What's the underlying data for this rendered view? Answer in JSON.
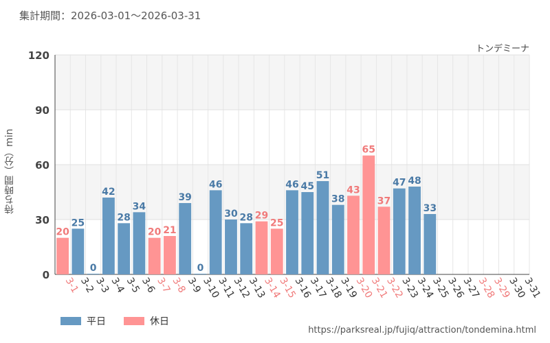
{
  "header": {
    "period": "集計期間：2026-03-01～2026-03-31",
    "attraction_name": "トンデミーナ"
  },
  "legend": {
    "weekday_label": "平日",
    "holiday_label": "休日"
  },
  "footer": {
    "source_url": "https://parksreal.jp/fujiq/attraction/tondemina.html"
  },
  "colors": {
    "weekday": "#6699c2",
    "holiday": "#ff9494",
    "weekday_text": "#4a7aa6",
    "holiday_text": "#f07a7a",
    "band": "#f5f5f5"
  },
  "chart_data": {
    "type": "bar",
    "ylabel": "待ち時間（分）min",
    "ylim": [
      0,
      120
    ],
    "yticks": [
      "0",
      "30",
      "60",
      "90",
      "120"
    ],
    "categories": [
      "3-1",
      "3-2",
      "3-3",
      "3-4",
      "3-5",
      "3-6",
      "3-7",
      "3-8",
      "3-9",
      "3-10",
      "3-11",
      "3-12",
      "3-13",
      "3-14",
      "3-15",
      "3-16",
      "3-17",
      "3-18",
      "3-19",
      "3-20",
      "3-21",
      "3-22",
      "3-23",
      "3-24",
      "3-25",
      "3-26",
      "3-27",
      "3-28",
      "3-29",
      "3-30",
      "3-31"
    ],
    "values": [
      20,
      25,
      0,
      42,
      28,
      34,
      20,
      21,
      39,
      0,
      46,
      30,
      28,
      29,
      25,
      46,
      45,
      51,
      38,
      43,
      65,
      37,
      47,
      48,
      33,
      null,
      null,
      null,
      null,
      null,
      null
    ],
    "day_type": [
      "holiday",
      "weekday",
      "weekday",
      "weekday",
      "weekday",
      "weekday",
      "holiday",
      "holiday",
      "weekday",
      "weekday",
      "weekday",
      "weekday",
      "weekday",
      "holiday",
      "holiday",
      "weekday",
      "weekday",
      "weekday",
      "weekday",
      "holiday",
      "holiday",
      "holiday",
      "weekday",
      "weekday",
      "weekday",
      "weekday",
      "weekday",
      "holiday",
      "holiday",
      "weekday",
      "weekday"
    ]
  }
}
